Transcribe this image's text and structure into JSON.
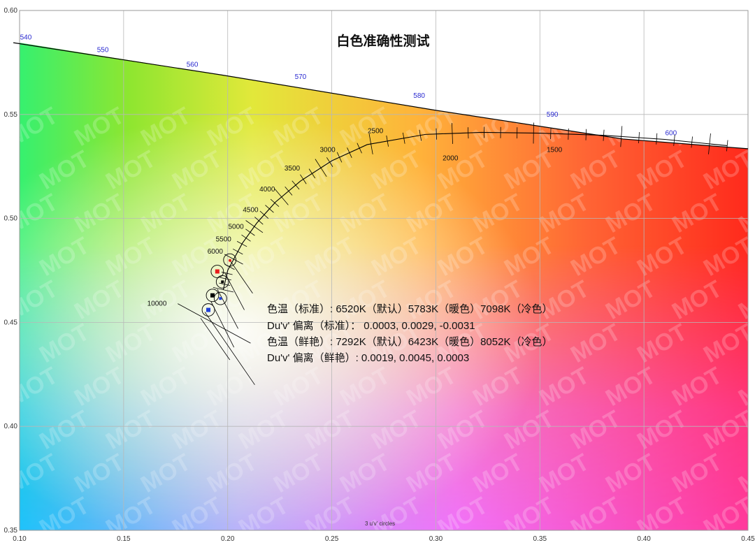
{
  "chart_data": {
    "type": "scatter",
    "title": "白色准确性测试",
    "xlim": [
      0.1,
      0.45
    ],
    "ylim": [
      0.35,
      0.6
    ],
    "x_ticks": [
      "0.10",
      "0.15",
      "0.20",
      "0.25",
      "0.30",
      "0.35",
      "0.40",
      "0.45"
    ],
    "y_ticks": [
      "0.35",
      "0.40",
      "0.45",
      "0.50",
      "0.55",
      "0.60"
    ],
    "grid": true,
    "spectral_locus": {
      "points": [
        [
          0.097,
          0.5845
        ],
        [
          0.197,
          0.569
        ],
        [
          0.3,
          0.552
        ],
        [
          0.39,
          0.5382
        ],
        [
          0.45,
          0.5335
        ]
      ],
      "labels": [
        {
          "text": "540",
          "x": 0.103,
          "y": 0.586
        },
        {
          "text": "550",
          "x": 0.14,
          "y": 0.58
        },
        {
          "text": "560",
          "x": 0.183,
          "y": 0.573
        },
        {
          "text": "570",
          "x": 0.235,
          "y": 0.567
        },
        {
          "text": "580",
          "x": 0.292,
          "y": 0.558
        },
        {
          "text": "590",
          "x": 0.356,
          "y": 0.549
        },
        {
          "text": "600",
          "x": 0.413,
          "y": 0.54
        }
      ]
    },
    "planckian_locus": {
      "points": [
        [
          0.1979,
          0.4657
        ],
        [
          0.2,
          0.475
        ],
        [
          0.207,
          0.488
        ],
        [
          0.214,
          0.4978
        ],
        [
          0.223,
          0.5079
        ],
        [
          0.235,
          0.518
        ],
        [
          0.25,
          0.5277
        ],
        [
          0.267,
          0.5355
        ],
        [
          0.295,
          0.5404
        ],
        [
          0.322,
          0.5414
        ],
        [
          0.35,
          0.541
        ],
        [
          0.38,
          0.54
        ],
        [
          0.41,
          0.538
        ],
        [
          0.44,
          0.535
        ]
      ],
      "cct_labels": [
        {
          "text": "10000",
          "x": 0.166,
          "y": 0.458
        },
        {
          "text": "6000",
          "x": 0.194,
          "y": 0.483
        },
        {
          "text": "5500",
          "x": 0.198,
          "y": 0.489
        },
        {
          "text": "5000",
          "x": 0.204,
          "y": 0.495
        },
        {
          "text": "4500",
          "x": 0.211,
          "y": 0.503
        },
        {
          "text": "4000",
          "x": 0.219,
          "y": 0.513
        },
        {
          "text": "3500",
          "x": 0.231,
          "y": 0.523
        },
        {
          "text": "3000",
          "x": 0.248,
          "y": 0.532
        },
        {
          "text": "2500",
          "x": 0.271,
          "y": 0.541
        },
        {
          "text": "2000",
          "x": 0.307,
          "y": 0.528
        },
        {
          "text": "1500",
          "x": 0.357,
          "y": 0.532
        }
      ]
    },
    "series": [
      {
        "name": "",
        "color": "#e81c1c",
        "markers": [
          {
            "x": 0.195,
            "y": 0.4745
          }
        ]
      },
      {
        "name": "",
        "color": "#000000",
        "markers": [
          {
            "x": 0.1975,
            "y": 0.4695
          },
          {
            "x": 0.1927,
            "y": 0.463
          }
        ]
      },
      {
        "name": "",
        "color": "#1f3fd8",
        "markers": [
          {
            "x": 0.1965,
            "y": 0.4615
          },
          {
            "x": 0.1907,
            "y": 0.456
          }
        ]
      }
    ],
    "reference_point": {
      "x": 0.2011,
      "y": 0.4798,
      "color": "#e81c1c"
    },
    "circles": [
      {
        "x": 0.201,
        "y": 0.48
      },
      {
        "x": 0.195,
        "y": 0.4745
      },
      {
        "x": 0.1975,
        "y": 0.4695
      },
      {
        "x": 0.1927,
        "y": 0.463
      },
      {
        "x": 0.1965,
        "y": 0.4615
      },
      {
        "x": 0.1907,
        "y": 0.456
      }
    ],
    "annotations": [
      "色温（标准）: 6520K（默认）5783K（暖色）7098K（冷色）",
      "Du'v' 偏离（标准）： 0.0003, 0.0029, -0.0031",
      "色温（鲜艳）: 7292K（默认）6423K（暖色）8052K（冷色）",
      "Du'v' 偏离（鲜艳）: 0.0019, 0.0045, 0.0003"
    ],
    "footnote": "3  u'v' circles",
    "watermark": "MOT"
  }
}
